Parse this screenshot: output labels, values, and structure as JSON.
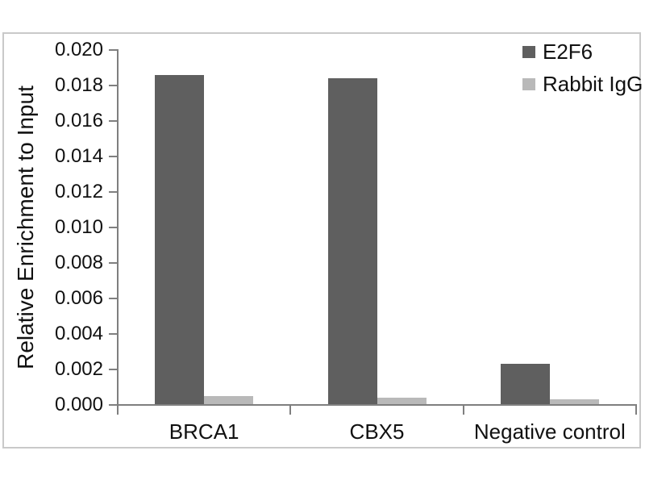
{
  "chart_data": {
    "type": "bar",
    "title": "",
    "categories": [
      "BRCA1",
      "CBX5",
      "Negative control"
    ],
    "series": [
      {
        "name": "E2F6",
        "color": "#5f5f5f",
        "values": [
          0.0186,
          0.0184,
          0.0023
        ]
      },
      {
        "name": "Rabbit IgG",
        "color": "#b9b9b9",
        "values": [
          0.0005,
          0.0004,
          0.0003
        ]
      }
    ],
    "xlabel": "",
    "ylabel": "Relative Enrichment to Input",
    "ylim": [
      0,
      0.02
    ],
    "y_tick_step": 0.002,
    "y_tick_labels": [
      "0.000",
      "0.002",
      "0.004",
      "0.006",
      "0.008",
      "0.010",
      "0.012",
      "0.014",
      "0.016",
      "0.018",
      "0.020"
    ],
    "grid": false,
    "legend_position": "top-right",
    "axis_color": "#7f7f7f",
    "frame_color": "#c9c9c9",
    "text_color": "#111111"
  }
}
